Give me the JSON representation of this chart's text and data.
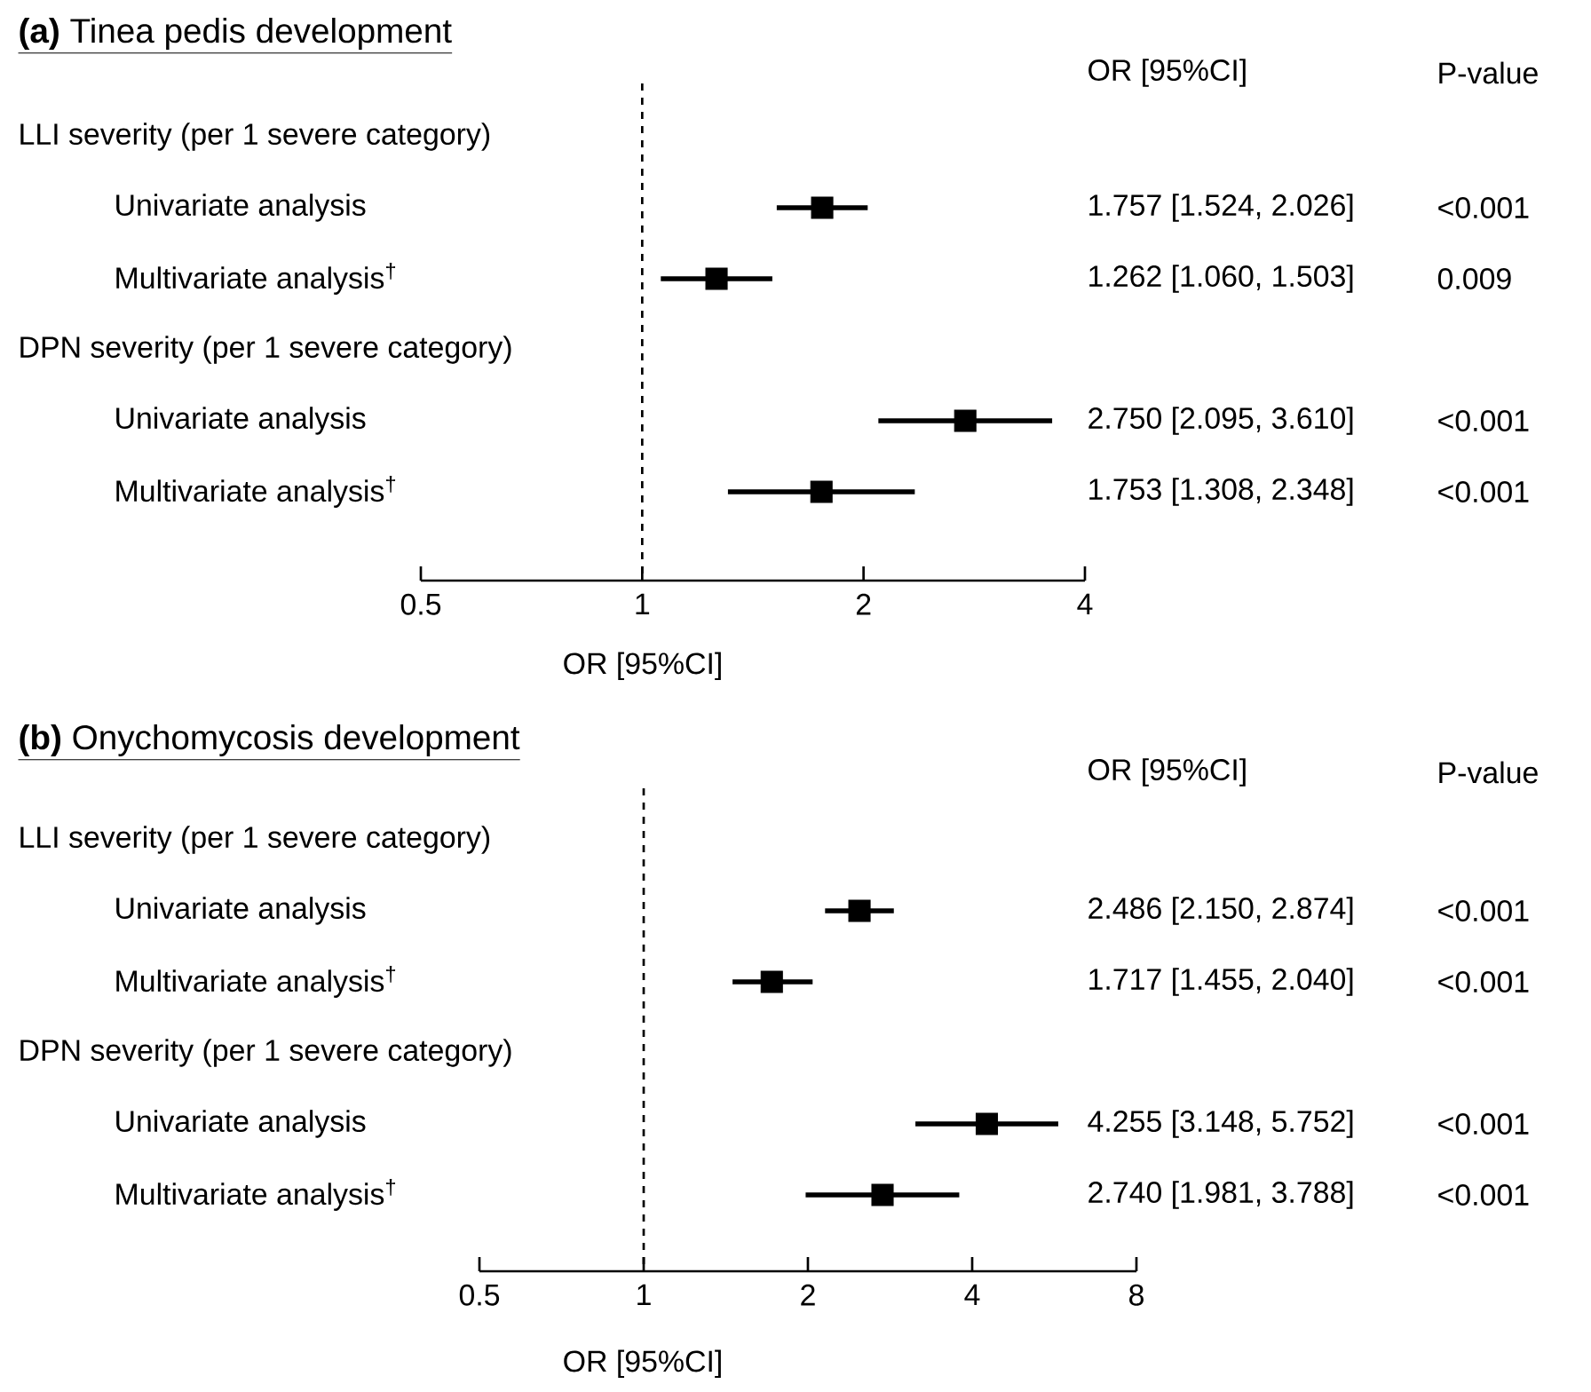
{
  "chart_data": [
    {
      "type": "scatter",
      "orientation": "horizontal",
      "title": "**(a)** Tinea pedis development",
      "xlabel": "OR [95%CI]",
      "categories": [
        "LLI severity (per 1 severe category)",
        "Univariate analysis",
        "Multivariate analysis$^{†}$",
        "DPN severity (per 1 severe category)",
        "Univariate analysis",
        "Multivariate analysis$^{†}$"
      ],
      "values": [
        null,
        1.757,
        1.262,
        null,
        2.75,
        1.753
      ],
      "errors": [
        null,
        [
          1.524,
          2.026
        ],
        [
          1.06,
          1.503
        ],
        null,
        [
          2.095,
          3.61
        ],
        [
          1.308,
          2.348
        ]
      ],
      "value_labels": [
        null,
        "1.757 [1.524, 2.026]",
        "1.262 [1.060, 1.503]",
        null,
        "2.750 [2.095, 3.610]",
        "1.753 [1.308, 2.348]"
      ],
      "annotations": [
        "OR [95%CI]",
        "P-value",
        "<0.001",
        "0.009",
        "<0.001",
        "<0.001"
      ],
      "color": "#000000",
      "marker": "square",
      "log": "x",
      "xlim": [
        0.5,
        4
      ],
      "xticks": [
        0.5,
        1,
        2,
        4
      ],
      "ref_lines": [
        {
          "axis": "x",
          "value": 1,
          "line_style": "dashed"
        }
      ],
      "tick_labels": "x",
      "grid": false
    },
    {
      "type": "scatter",
      "orientation": "horizontal",
      "title": "**(b)** Onychomycosis development",
      "xlabel": "OR [95%CI]",
      "categories": [
        "LLI severity (per 1 severe category)",
        "Univariate analysis",
        "Multivariate analysis$^{†}$",
        "DPN severity (per 1 severe category)",
        "Univariate analysis",
        "Multivariate analysis$^{†}$"
      ],
      "values": [
        null,
        2.486,
        1.717,
        null,
        4.255,
        2.74
      ],
      "errors": [
        null,
        [
          2.15,
          2.874
        ],
        [
          1.455,
          2.04
        ],
        null,
        [
          3.148,
          5.752
        ],
        [
          1.981,
          3.788
        ]
      ],
      "value_labels": [
        null,
        "2.486 [2.150, 2.874]",
        "1.717 [1.455, 2.040]",
        null,
        "4.255 [3.148, 5.752]",
        "2.740 [1.981, 3.788]"
      ],
      "annotations": [
        "OR [95%CI]",
        "P-value",
        "<0.001",
        "<0.001",
        "<0.001",
        "<0.001"
      ],
      "color": "#000000",
      "marker": "square",
      "log": "x",
      "xlim": [
        0.5,
        8
      ],
      "xticks": [
        0.5,
        1,
        2,
        4,
        8
      ],
      "ref_lines": [
        {
          "axis": "x",
          "value": 1,
          "line_style": "dashed"
        }
      ],
      "tick_labels": "x",
      "grid": false
    }
  ]
}
